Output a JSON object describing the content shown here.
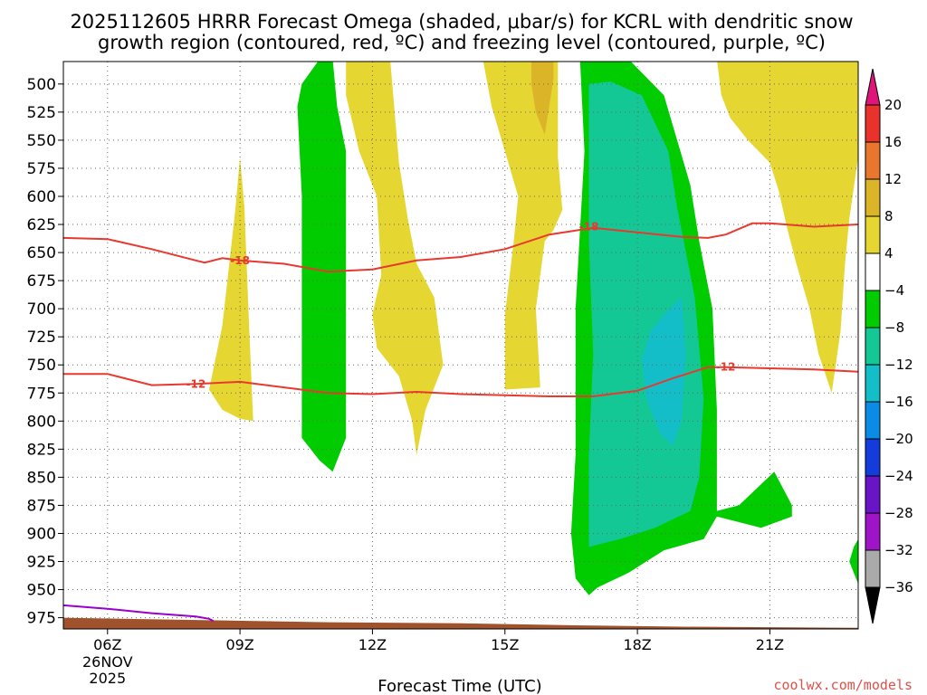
{
  "title": {
    "line1": "2025112605 HRRR Forecast Omega (shaded, μbar/s) for KCRL with dendritic snow",
    "line2": "growth region (contoured, red, ºC) and freezing level (contoured, purple, ºC)"
  },
  "credit": "coolwx.com/models",
  "colors": {
    "yellow": "#e6d632",
    "orange_light": "#dcb428",
    "orange": "#e08a2c",
    "green": "#00cc00",
    "teal": "#14c896",
    "cyan": "#14bec8",
    "dendritic_contour": "#e8392f",
    "freezing_contour": "#9900cc",
    "ground": "#a0522d"
  },
  "chart_data": {
    "type": "heatmap",
    "title": "2025112605 HRRR Forecast Omega (shaded, μbar/s) for KCRL with dendritic snow growth region (contoured, red, ºC) and freezing level (contoured, purple, ºC)",
    "xlabel": "Forecast Time (UTC)",
    "ylabel": "",
    "y_axis": {
      "reversed": true,
      "range": [
        480,
        985
      ],
      "ticks": [
        500,
        525,
        550,
        575,
        600,
        625,
        650,
        675,
        700,
        725,
        750,
        775,
        800,
        825,
        850,
        875,
        900,
        925,
        950,
        975
      ]
    },
    "x_axis": {
      "range_hours": [
        5,
        23
      ],
      "ticks": [
        {
          "hour": 6,
          "label": "06Z",
          "sub": [
            "26NOV",
            "2025"
          ]
        },
        {
          "hour": 9,
          "label": "09Z"
        },
        {
          "hour": 12,
          "label": "12Z"
        },
        {
          "hour": 15,
          "label": "15Z"
        },
        {
          "hour": 18,
          "label": "18Z"
        },
        {
          "hour": 21,
          "label": "21Z"
        }
      ]
    },
    "grid": true,
    "colorbar": {
      "unit": "μbar/s",
      "levels": [
        {
          "range": [
            20,
            24
          ],
          "color": "#e0157a"
        },
        {
          "range": [
            16,
            20
          ],
          "color": "#e8322b"
        },
        {
          "range": [
            12,
            16
          ],
          "color": "#e8762c"
        },
        {
          "range": [
            8,
            12
          ],
          "color": "#dcb428"
        },
        {
          "range": [
            4,
            8
          ],
          "color": "#e6d632"
        },
        {
          "range": [
            -4,
            4
          ],
          "color": "#ffffff"
        },
        {
          "range": [
            -8,
            -4
          ],
          "color": "#00cc00"
        },
        {
          "range": [
            -12,
            -8
          ],
          "color": "#14c896"
        },
        {
          "range": [
            -16,
            -12
          ],
          "color": "#14bec8"
        },
        {
          "range": [
            -20,
            -16
          ],
          "color": "#0a8ce6"
        },
        {
          "range": [
            -24,
            -20
          ],
          "color": "#143cdc"
        },
        {
          "range": [
            -28,
            -24
          ],
          "color": "#6a14c8"
        },
        {
          "range": [
            -32,
            -28
          ],
          "color": "#a014c8"
        },
        {
          "range": [
            -36,
            -32
          ],
          "color": "#aaaaaa"
        },
        {
          "range": [
            -40,
            -36
          ],
          "color": "#000000"
        }
      ],
      "tick_labels": [
        "20",
        "16",
        "12",
        "8",
        "4",
        "−4",
        "−8",
        "−12",
        "−16",
        "−20",
        "−24",
        "−28",
        "−32",
        "−36"
      ]
    },
    "shaded_regions": [
      {
        "level": "4 to 8",
        "color": "#e6d632",
        "points": [
          [
            8.3,
            772
          ],
          [
            8.6,
            715
          ],
          [
            8.9,
            610
          ],
          [
            9.0,
            565
          ],
          [
            9.1,
            610
          ],
          [
            9.2,
            710
          ],
          [
            9.3,
            800
          ],
          [
            9.0,
            798
          ],
          [
            8.6,
            790
          ],
          [
            8.3,
            772
          ]
        ]
      },
      {
        "level": "4 to 8",
        "color": "#e6d632",
        "points": [
          [
            11.4,
            478
          ],
          [
            12.4,
            478
          ],
          [
            12.6,
            570
          ],
          [
            12.8,
            620
          ],
          [
            13.0,
            660
          ],
          [
            13.4,
            690
          ],
          [
            13.6,
            750
          ],
          [
            13.2,
            790
          ],
          [
            13.0,
            830
          ],
          [
            12.9,
            800
          ],
          [
            12.6,
            760
          ],
          [
            12.1,
            735
          ],
          [
            12.0,
            705
          ],
          [
            12.2,
            670
          ],
          [
            12.1,
            600
          ],
          [
            11.7,
            560
          ],
          [
            11.4,
            510
          ],
          [
            11.4,
            478
          ]
        ]
      },
      {
        "level": "4 to 8",
        "color": "#e6d632",
        "points": [
          [
            14.5,
            478
          ],
          [
            16.2,
            478
          ],
          [
            16.2,
            565
          ],
          [
            16.3,
            612
          ],
          [
            16.1,
            630
          ],
          [
            15.9,
            640
          ],
          [
            15.7,
            700
          ],
          [
            15.8,
            770
          ],
          [
            15.0,
            772
          ],
          [
            15.0,
            705
          ],
          [
            15.2,
            640
          ],
          [
            15.3,
            600
          ],
          [
            15.0,
            560
          ],
          [
            14.7,
            520
          ],
          [
            14.5,
            478
          ]
        ]
      },
      {
        "level": "8 to 12",
        "color": "#dcb428",
        "points": [
          [
            15.6,
            478
          ],
          [
            16.1,
            478
          ],
          [
            16.1,
            495
          ],
          [
            16.0,
            520
          ],
          [
            15.9,
            545
          ],
          [
            15.7,
            525
          ],
          [
            15.6,
            500
          ],
          [
            15.6,
            478
          ]
        ]
      },
      {
        "level": "4 to 8",
        "color": "#e6d632",
        "points": [
          [
            19.8,
            478
          ],
          [
            23.0,
            478
          ],
          [
            23.0,
            565
          ],
          [
            22.8,
            620
          ],
          [
            22.7,
            660
          ],
          [
            22.6,
            720
          ],
          [
            22.4,
            775
          ],
          [
            22.1,
            740
          ],
          [
            21.9,
            700
          ],
          [
            21.6,
            660
          ],
          [
            21.4,
            630
          ],
          [
            21.2,
            595
          ],
          [
            21.0,
            570
          ],
          [
            20.5,
            550
          ],
          [
            20.1,
            530
          ],
          [
            19.9,
            510
          ],
          [
            19.8,
            478
          ]
        ]
      },
      {
        "level": "-8 to -4",
        "color": "#00cc00",
        "points": [
          [
            10.8,
            478
          ],
          [
            11.1,
            478
          ],
          [
            11.2,
            520
          ],
          [
            11.4,
            560
          ],
          [
            11.4,
            640
          ],
          [
            11.4,
            745
          ],
          [
            11.4,
            815
          ],
          [
            11.1,
            845
          ],
          [
            10.8,
            835
          ],
          [
            10.4,
            815
          ],
          [
            10.4,
            700
          ],
          [
            10.4,
            600
          ],
          [
            10.3,
            520
          ],
          [
            10.4,
            500
          ],
          [
            10.8,
            478
          ]
        ]
      },
      {
        "level": "-8 to -4",
        "color": "#00cc00",
        "points": [
          [
            16.7,
            478
          ],
          [
            17.8,
            478
          ],
          [
            18.6,
            510
          ],
          [
            18.9,
            550
          ],
          [
            19.2,
            590
          ],
          [
            19.4,
            640
          ],
          [
            19.7,
            700
          ],
          [
            19.8,
            790
          ],
          [
            19.8,
            880
          ],
          [
            20.3,
            875
          ],
          [
            21.1,
            845
          ],
          [
            21.5,
            875
          ],
          [
            21.5,
            885
          ],
          [
            20.8,
            895
          ],
          [
            19.8,
            885
          ],
          [
            19.5,
            905
          ],
          [
            18.6,
            915
          ],
          [
            17.8,
            935
          ],
          [
            17.1,
            948
          ],
          [
            16.9,
            955
          ],
          [
            16.6,
            940
          ],
          [
            16.5,
            900
          ],
          [
            16.6,
            830
          ],
          [
            16.6,
            700
          ],
          [
            16.8,
            560
          ],
          [
            16.7,
            478
          ]
        ]
      },
      {
        "level": "-12 to -8",
        "color": "#14c896",
        "points": [
          [
            16.9,
            500
          ],
          [
            17.4,
            498
          ],
          [
            18.1,
            510
          ],
          [
            18.7,
            560
          ],
          [
            18.9,
            610
          ],
          [
            19.3,
            690
          ],
          [
            19.5,
            780
          ],
          [
            19.4,
            850
          ],
          [
            19.2,
            880
          ],
          [
            18.4,
            895
          ],
          [
            17.6,
            905
          ],
          [
            16.9,
            912
          ],
          [
            16.9,
            830
          ],
          [
            17.0,
            740
          ],
          [
            16.9,
            640
          ],
          [
            16.9,
            500
          ]
        ]
      },
      {
        "level": "-16 to -12",
        "color": "#14bec8",
        "points": [
          [
            19.0,
            690
          ],
          [
            19.1,
            740
          ],
          [
            19.0,
            800
          ],
          [
            18.8,
            822
          ],
          [
            18.5,
            810
          ],
          [
            18.2,
            780
          ],
          [
            18.1,
            745
          ],
          [
            18.3,
            720
          ],
          [
            18.6,
            705
          ],
          [
            19.0,
            690
          ]
        ]
      },
      {
        "level": "-8 to -4",
        "color": "#00cc00",
        "points": [
          [
            23.0,
            905
          ],
          [
            23.0,
            945
          ],
          [
            22.8,
            925
          ],
          [
            22.9,
            912
          ],
          [
            23.0,
            905
          ]
        ]
      }
    ],
    "contours": [
      {
        "name": "dendritic -18 ºC",
        "color": "#e8392f",
        "label": "-18",
        "points": [
          [
            5.0,
            637
          ],
          [
            6.0,
            638
          ],
          [
            7.0,
            647
          ],
          [
            8.0,
            657
          ],
          [
            8.2,
            659
          ],
          [
            8.6,
            655
          ],
          [
            9.0,
            657
          ],
          [
            10.0,
            660
          ],
          [
            11.0,
            667
          ],
          [
            12.0,
            665
          ],
          [
            13.0,
            657
          ],
          [
            14.0,
            654
          ],
          [
            15.0,
            647
          ],
          [
            16.0,
            634
          ],
          [
            17.0,
            628
          ],
          [
            18.0,
            632
          ],
          [
            19.0,
            636
          ],
          [
            19.6,
            637
          ],
          [
            20.0,
            634
          ],
          [
            20.6,
            624
          ],
          [
            21.0,
            624
          ],
          [
            22.0,
            627
          ],
          [
            23.0,
            625
          ]
        ],
        "label_at": [
          9.0,
          657
        ]
      },
      {
        "name": "dendritic -18 label",
        "color": "#e8392f",
        "label": "-18",
        "points": [],
        "label_at": [
          16.9,
          627
        ]
      },
      {
        "name": "dendritic -12 ºC",
        "color": "#e8392f",
        "label": "-12",
        "points": [
          [
            5.0,
            758
          ],
          [
            6.0,
            758
          ],
          [
            7.0,
            768
          ],
          [
            8.0,
            767
          ],
          [
            9.0,
            765
          ],
          [
            10.0,
            770
          ],
          [
            11.0,
            775
          ],
          [
            12.0,
            776
          ],
          [
            13.0,
            774
          ],
          [
            14.0,
            776
          ],
          [
            15.0,
            777
          ],
          [
            16.0,
            778
          ],
          [
            17.0,
            778
          ],
          [
            18.0,
            773
          ],
          [
            18.8,
            762
          ],
          [
            19.6,
            752
          ],
          [
            20.0,
            752
          ],
          [
            21.0,
            753
          ],
          [
            22.0,
            754
          ],
          [
            23.0,
            756
          ]
        ],
        "label_at": [
          8.0,
          767
        ]
      },
      {
        "name": "dendritic -12 label",
        "color": "#e8392f",
        "label": "-12",
        "points": [],
        "label_at": [
          20.0,
          752
        ]
      },
      {
        "name": "freezing level",
        "color": "#9900cc",
        "label": "",
        "points": [
          [
            5.0,
            964
          ],
          [
            6.0,
            967
          ],
          [
            7.0,
            971
          ],
          [
            8.0,
            974
          ],
          [
            8.3,
            976
          ],
          [
            8.4,
            978
          ]
        ],
        "label_at": null
      }
    ],
    "ground": {
      "color": "#a0522d",
      "top_points": [
        [
          5.0,
          975
        ],
        [
          8.0,
          977
        ],
        [
          11.0,
          979
        ],
        [
          14.0,
          980
        ],
        [
          17.0,
          982
        ],
        [
          19.0,
          983
        ],
        [
          23.0,
          984
        ]
      ],
      "bottom": 985
    }
  }
}
